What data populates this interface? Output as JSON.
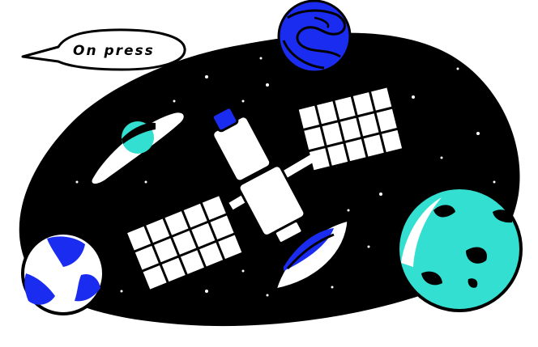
{
  "illustration": {
    "speech_bubble": {
      "text": "On press"
    },
    "colors": {
      "space": "#000000",
      "outline": "#000000",
      "paper": "#ffffff",
      "blue": "#1a2cf0",
      "teal": "#33dfd0"
    },
    "icons": [
      "speech-bubble-icon",
      "satellite-icon",
      "planet-icon",
      "ringed-planet-icon",
      "rocket-icon",
      "moon-icon",
      "stars-icon"
    ]
  }
}
